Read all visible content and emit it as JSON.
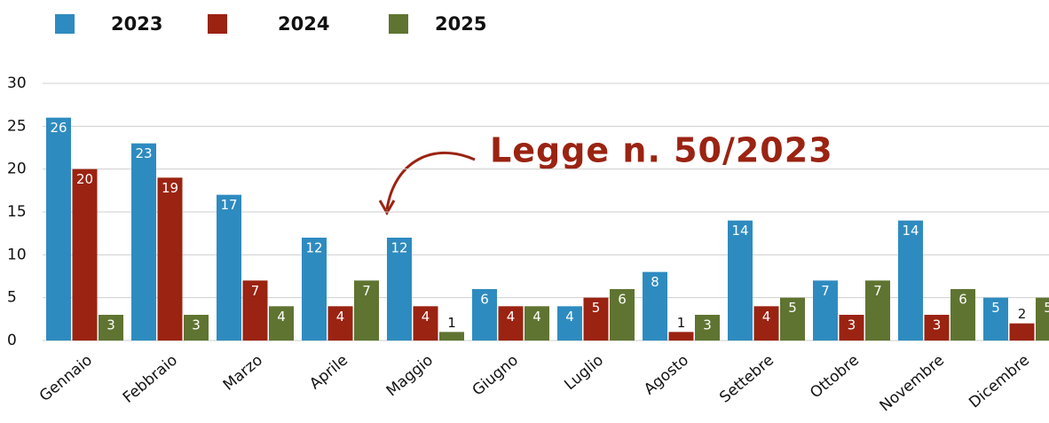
{
  "chart_data": {
    "type": "bar",
    "annotation": "Legge n. 50/2023",
    "categories": [
      "Gennaio",
      "Febbraio",
      "Marzo",
      "Aprile",
      "Maggio",
      "Giugno",
      "Luglio",
      "Agosto",
      "Settebre",
      "Ottobre",
      "Novembre",
      "Dicembre"
    ],
    "series": [
      {
        "name": "2023",
        "color": "#2e8bc0",
        "values": [
          26,
          23,
          17,
          12,
          12,
          6,
          4,
          8,
          14,
          7,
          14,
          5
        ]
      },
      {
        "name": "2024",
        "color": "#9b2312",
        "values": [
          20,
          19,
          7,
          4,
          4,
          4,
          5,
          1,
          4,
          3,
          3,
          2
        ]
      },
      {
        "name": "2025",
        "color": "#5f7431",
        "values": [
          3,
          3,
          4,
          7,
          1,
          4,
          6,
          3,
          5,
          7,
          6,
          5
        ]
      }
    ],
    "ylim": [
      0,
      30
    ],
    "yticks": [
      0,
      5,
      10,
      15,
      20,
      25,
      30
    ],
    "grid": true,
    "legend": "top"
  }
}
